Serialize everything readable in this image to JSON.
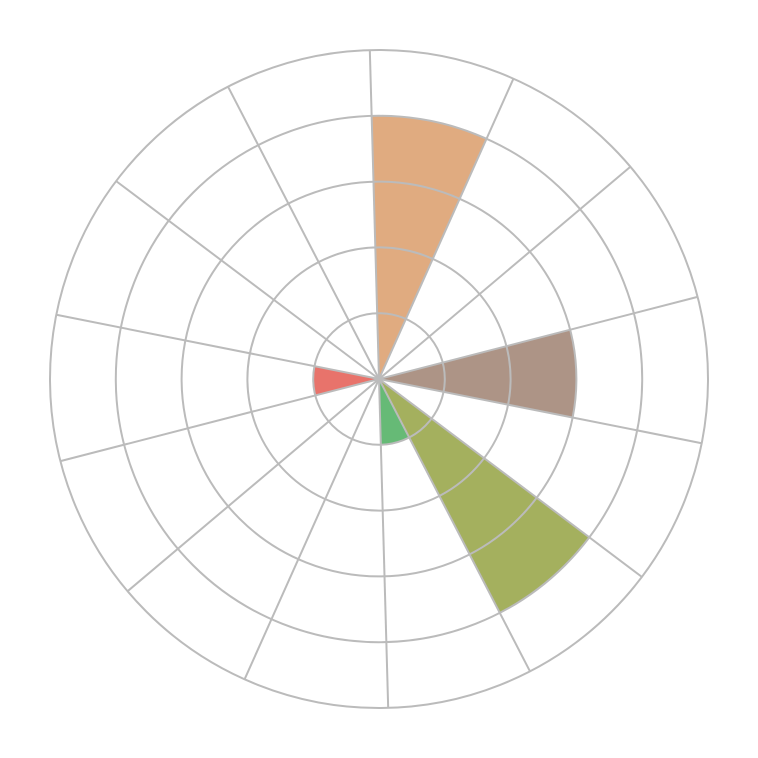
{
  "chart_data": {
    "type": "polar-bar",
    "categories_count": 14,
    "values": [
      4,
      0,
      0,
      3,
      0,
      4,
      1,
      0,
      0,
      0,
      1,
      0,
      0,
      0
    ],
    "colors": [
      "#E0AB80",
      null,
      null,
      "#AD9486",
      null,
      "#A4B05E",
      "#66BA76",
      null,
      null,
      null,
      "#E8736B",
      null,
      null,
      null
    ],
    "rlim": [
      0,
      5
    ],
    "ring_values": [
      1,
      2,
      3,
      4,
      5
    ],
    "grid": true,
    "grid_color": "#BBBBBB",
    "start_angle_deg": -1.6,
    "direction": "clockwise",
    "legend": "none"
  }
}
